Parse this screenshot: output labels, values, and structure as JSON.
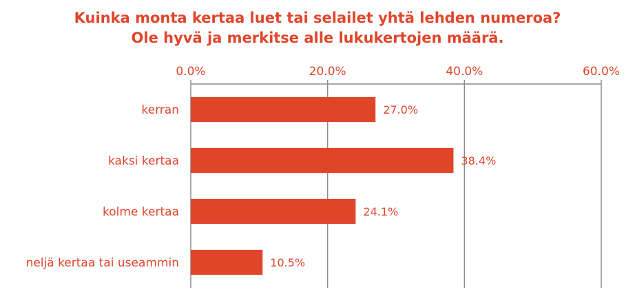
{
  "chart_data": {
    "type": "bar",
    "orientation": "horizontal",
    "title_lines": [
      "Kuinka monta kertaa luet tai selailet yhtä lehden numeroa?",
      "Ole hyvä ja merkitse alle lukukertojen määrä."
    ],
    "categories": [
      "kerran",
      "kaksi kertaa",
      "kolme kertaa",
      "neljä kertaa tai useammin"
    ],
    "values": [
      27.0,
      38.4,
      24.1,
      10.5
    ],
    "value_labels": [
      "27.0%",
      "38.4%",
      "24.1%",
      "10.5%"
    ],
    "xlim": [
      0,
      60
    ],
    "ticks": [
      0,
      20,
      40,
      60
    ],
    "tick_labels": [
      "0.0%",
      "20.0%",
      "40.0%",
      "60.0%"
    ],
    "axis_position": "top",
    "grid": true,
    "legend": "none",
    "colors": {
      "bar": "#e0452a",
      "text": "#e0452a",
      "grid": "#8c8c8c"
    }
  }
}
